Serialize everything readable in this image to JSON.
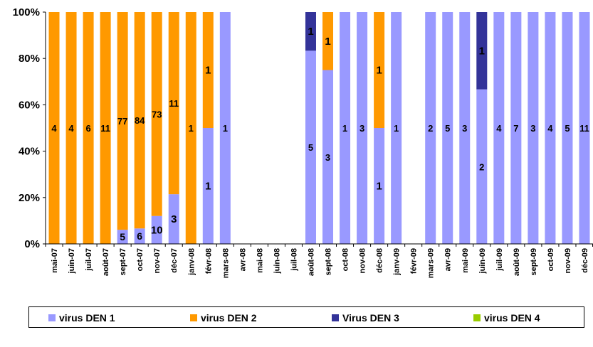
{
  "chart_data": {
    "type": "bar",
    "stacked": true,
    "percent_stacked": true,
    "categories": [
      "mai-07",
      "juin-07",
      "juil-07",
      "août-07",
      "sept-07",
      "oct-07",
      "nov-07",
      "déc-07",
      "janv-08",
      "févr-08",
      "mars-08",
      "avr-08",
      "mai-08",
      "juin-08",
      "juil-08",
      "août-08",
      "sept-08",
      "oct-08",
      "nov-08",
      "déc-08",
      "janv-09",
      "févr-09",
      "mars-09",
      "avr-09",
      "mai-09",
      "juin-09",
      "juil-09",
      "août-09",
      "sept-09",
      "oct-09",
      "nov-09",
      "déc-09"
    ],
    "series": [
      {
        "name": "virus DEN 1",
        "color": "#9999FF",
        "values": [
          0,
          0,
          0,
          0,
          5,
          6,
          10,
          3,
          0,
          1,
          1,
          0,
          0,
          0,
          0,
          5,
          3,
          1,
          3,
          1,
          1,
          0,
          2,
          5,
          3,
          2,
          4,
          7,
          3,
          4,
          5,
          11
        ]
      },
      {
        "name": "virus DEN 2",
        "color": "#FF9900",
        "values": [
          4,
          4,
          6,
          11,
          77,
          84,
          73,
          11,
          1,
          1,
          0,
          0,
          0,
          0,
          0,
          0,
          1,
          0,
          0,
          1,
          0,
          0,
          0,
          0,
          0,
          0,
          0,
          0,
          0,
          0,
          0,
          0
        ]
      },
      {
        "name": "Virus DEN 3",
        "color": "#333399",
        "values": [
          0,
          0,
          0,
          0,
          0,
          0,
          0,
          0,
          0,
          0,
          0,
          0,
          0,
          0,
          0,
          1,
          0,
          0,
          0,
          0,
          0,
          0,
          0,
          0,
          0,
          1,
          0,
          0,
          0,
          0,
          0,
          0
        ]
      },
      {
        "name": "virus DEN 4",
        "color": "#99CC00",
        "values": [
          0,
          0,
          0,
          0,
          0,
          0,
          0,
          0,
          0,
          0,
          0,
          0,
          0,
          0,
          0,
          0,
          0,
          0,
          0,
          0,
          0,
          0,
          0,
          0,
          0,
          0,
          0,
          0,
          0,
          0,
          0,
          0
        ]
      }
    ],
    "y_tick_labels": [
      "0%",
      "20%",
      "40%",
      "60%",
      "80%",
      "100%"
    ],
    "ylim": [
      0,
      100
    ],
    "grid": false,
    "legend_position": "bottom",
    "data_labels": true
  }
}
